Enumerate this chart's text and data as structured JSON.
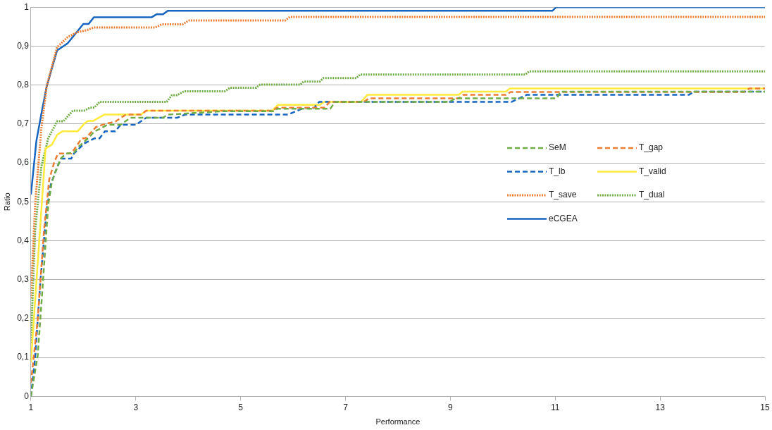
{
  "chart_data": {
    "type": "line",
    "xlabel": "Performance",
    "ylabel": "Ratio",
    "xlim": [
      1,
      15
    ],
    "xticks": [
      1,
      3,
      5,
      7,
      9,
      11,
      13,
      15
    ],
    "ylim": [
      0,
      1
    ],
    "yticks": [
      0,
      {
        "value": 0.1,
        "label": "0,1"
      },
      {
        "value": 0.2,
        "label": "0,2"
      },
      {
        "value": 0.3,
        "label": "0,3"
      },
      {
        "value": 0.4,
        "label": "0,4"
      },
      {
        "value": 0.5,
        "label": "0,5"
      },
      {
        "value": 0.6,
        "label": "0,6"
      },
      {
        "value": 0.7,
        "label": "0,7"
      },
      {
        "value": 0.8,
        "label": "0,8"
      },
      {
        "value": 0.9,
        "label": "0,9"
      },
      1
    ],
    "grid": "y",
    "legend": "right",
    "marker": "none",
    "series": [
      {
        "name": "SeM",
        "color": "#70ad47",
        "line_style": "dashed",
        "x": [
          1,
          1.13,
          1.23,
          1.33,
          1.4,
          1.47,
          1.57,
          1.67,
          1.82,
          1.92,
          2.12,
          2.21,
          2.31,
          2.46,
          2.71,
          2.9,
          3.52,
          3.61,
          4.7,
          5.64,
          5.7,
          6.71,
          6.8,
          8.99,
          9.1,
          11.03,
          11.1,
          15
        ],
        "values": [
          0,
          0.105,
          0.295,
          0.492,
          0.551,
          0.578,
          0.611,
          0.624,
          0.626,
          0.643,
          0.667,
          0.681,
          0.687,
          0.698,
          0.698,
          0.716,
          0.716,
          0.724,
          0.733,
          0.733,
          0.739,
          0.739,
          0.757,
          0.757,
          0.766,
          0.766,
          0.783,
          0.783
        ]
      },
      {
        "name": "T_gap",
        "color": "#ed7d31",
        "line_style": "dashed",
        "x": [
          1,
          1.13,
          1.25,
          1.35,
          1.45,
          1.52,
          1.77,
          1.97,
          2.04,
          2.24,
          2.41,
          2.61,
          2.81,
          3.1,
          3.2,
          5.6,
          5.7,
          6.6,
          6.7,
          7.35,
          7.45,
          9.16,
          9.25,
          10.06,
          10.15,
          14.6,
          14.7,
          15
        ],
        "values": [
          0.035,
          0.197,
          0.427,
          0.558,
          0.604,
          0.624,
          0.624,
          0.663,
          0.663,
          0.692,
          0.7,
          0.706,
          0.724,
          0.724,
          0.734,
          0.734,
          0.742,
          0.742,
          0.757,
          0.757,
          0.766,
          0.766,
          0.775,
          0.775,
          0.782,
          0.782,
          0.791,
          0.791
        ]
      },
      {
        "name": "T_lb",
        "color": "#1565c0",
        "line_style": "dashed",
        "x": [
          1,
          1.08,
          1.18,
          1.3,
          1.38,
          1.47,
          1.57,
          1.77,
          1.82,
          2.02,
          2.21,
          2.31,
          2.41,
          2.61,
          2.71,
          3.0,
          3.2,
          3.79,
          3.94,
          5.9,
          6.2,
          6.4,
          6.5,
          10.17,
          10.46,
          13.55,
          13.65,
          15
        ],
        "values": [
          0,
          0.098,
          0.295,
          0.479,
          0.545,
          0.578,
          0.611,
          0.611,
          0.624,
          0.65,
          0.663,
          0.663,
          0.681,
          0.681,
          0.698,
          0.698,
          0.716,
          0.716,
          0.724,
          0.724,
          0.741,
          0.741,
          0.757,
          0.757,
          0.775,
          0.775,
          0.783,
          0.783
        ]
      },
      {
        "name": "T_valid",
        "color": "#ffeb3b",
        "line_style": "solid",
        "x": [
          1,
          1.28,
          1.4,
          1.5,
          1.6,
          1.89,
          2.02,
          2.09,
          2.19,
          2.4,
          3.1,
          3.2,
          5.6,
          5.71,
          6.51,
          6.6,
          7.3,
          7.42,
          9.16,
          9.23,
          10.06,
          10.13,
          15
        ],
        "values": [
          0.088,
          0.637,
          0.647,
          0.672,
          0.681,
          0.681,
          0.701,
          0.708,
          0.708,
          0.724,
          0.724,
          0.734,
          0.734,
          0.749,
          0.749,
          0.757,
          0.757,
          0.775,
          0.775,
          0.783,
          0.783,
          0.791,
          0.791
        ]
      },
      {
        "name": "T_save",
        "color": "#ed7d31",
        "line_style": "dotted",
        "x": [
          1,
          1.08,
          1.2,
          1.3,
          1.5,
          1.7,
          1.89,
          2.07,
          2.2,
          3.37,
          3.5,
          3.89,
          4.02,
          5.85,
          5.94,
          15
        ],
        "values": [
          0.252,
          0.492,
          0.689,
          0.796,
          0.897,
          0.923,
          0.936,
          0.941,
          0.948,
          0.948,
          0.956,
          0.956,
          0.966,
          0.966,
          0.975,
          0.975
        ]
      },
      {
        "name": "T_dual",
        "color": "#70ad47",
        "line_style": "dotted",
        "x": [
          1,
          1.08,
          1.2,
          1.33,
          1.5,
          1.62,
          1.8,
          2.01,
          2.13,
          2.21,
          2.31,
          3.59,
          3.69,
          3.79,
          3.92,
          4.7,
          4.8,
          5.3,
          5.37,
          6.14,
          6.2,
          6.51,
          6.58,
          7.21,
          7.28,
          10.43,
          10.5,
          15
        ],
        "values": [
          0.137,
          0.427,
          0.591,
          0.663,
          0.707,
          0.707,
          0.734,
          0.734,
          0.742,
          0.742,
          0.757,
          0.757,
          0.774,
          0.774,
          0.784,
          0.784,
          0.793,
          0.793,
          0.801,
          0.801,
          0.809,
          0.809,
          0.818,
          0.818,
          0.827,
          0.827,
          0.835,
          0.835
        ]
      },
      {
        "name": "eCGEA",
        "color": "#1565c0",
        "line_style": "solid",
        "x": [
          1,
          1.105,
          1.204,
          1.3,
          1.5,
          1.7,
          2.0,
          2.1,
          2.2,
          3.3,
          3.4,
          3.52,
          3.61,
          10.95,
          11.02,
          15
        ],
        "values": [
          0.519,
          0.657,
          0.729,
          0.796,
          0.889,
          0.907,
          0.957,
          0.957,
          0.974,
          0.974,
          0.982,
          0.982,
          0.991,
          0.991,
          1,
          1
        ]
      }
    ]
  }
}
